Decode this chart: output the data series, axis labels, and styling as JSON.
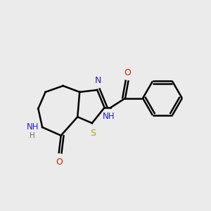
{
  "bg_color": "#ebebeb",
  "bond_color": "#000000",
  "bond_width": 1.8,
  "figsize": [
    3.0,
    3.0
  ],
  "dpi": 100,
  "atom_labels": {
    "NH_azepine": {
      "label": "NH",
      "color": "#2222bb",
      "fontsize": 8.5
    },
    "H_azepine": {
      "label": "H",
      "color": "#607070",
      "fontsize": 7.5
    },
    "O_lactam": {
      "label": "O",
      "color": "#cc2200",
      "fontsize": 9
    },
    "S_thiazole": {
      "label": "S",
      "color": "#aaaa00",
      "fontsize": 9
    },
    "N_thiazole": {
      "label": "N",
      "color": "#2222bb",
      "fontsize": 9
    },
    "NH_amide": {
      "label": "NH",
      "color": "#2222bb",
      "fontsize": 8.5
    },
    "H_amide": {
      "label": "H",
      "color": "#2222bb",
      "fontsize": 7.5
    },
    "O_amide": {
      "label": "O",
      "color": "#cc2200",
      "fontsize": 9
    }
  }
}
